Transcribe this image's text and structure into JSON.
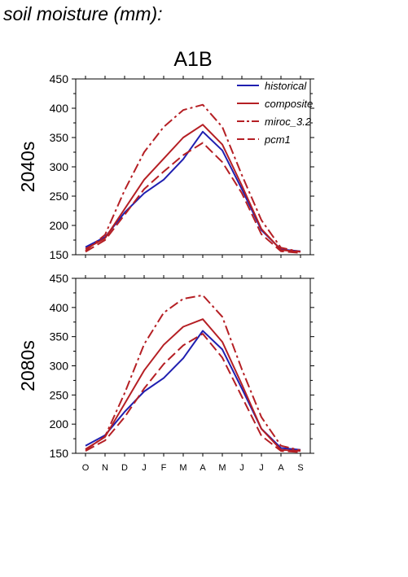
{
  "title": "soil moisture (mm):",
  "scenario": "A1B",
  "colors": {
    "historical": "#1f1fb0",
    "model": "#b51f24",
    "axis": "#000000"
  },
  "legend": [
    {
      "name": "historical",
      "color": "#1f1fb0",
      "dash": "solid"
    },
    {
      "name": "composite",
      "color": "#b51f24",
      "dash": "solid"
    },
    {
      "name": "miroc_3.2",
      "color": "#b51f24",
      "dash": "dashdot"
    },
    {
      "name": "pcm1",
      "color": "#b51f24",
      "dash": "dashed"
    }
  ],
  "chart_data": [
    {
      "type": "line",
      "ylabel": "2040s",
      "ylim": [
        150,
        450
      ],
      "yticks": [
        150,
        200,
        250,
        300,
        350,
        400,
        450
      ],
      "categories": [
        "O",
        "N",
        "D",
        "J",
        "F",
        "M",
        "A",
        "M",
        "J",
        "J",
        "A",
        "S"
      ],
      "series": [
        {
          "name": "historical",
          "values": [
            163,
            180,
            222,
            255,
            278,
            313,
            360,
            328,
            262,
            192,
            159,
            156
          ]
        },
        {
          "name": "composite",
          "values": [
            160,
            178,
            228,
            278,
            314,
            350,
            372,
            338,
            268,
            194,
            158,
            155
          ]
        },
        {
          "name": "miroc_3.2",
          "values": [
            157,
            184,
            260,
            325,
            368,
            397,
            406,
            368,
            286,
            209,
            162,
            155
          ]
        },
        {
          "name": "pcm1",
          "values": [
            155,
            175,
            218,
            262,
            292,
            320,
            341,
            308,
            255,
            185,
            156,
            153
          ]
        }
      ]
    },
    {
      "type": "line",
      "ylabel": "2080s",
      "ylim": [
        150,
        450
      ],
      "yticks": [
        150,
        200,
        250,
        300,
        350,
        400,
        450
      ],
      "categories": [
        "O",
        "N",
        "D",
        "J",
        "F",
        "M",
        "A",
        "M",
        "J",
        "J",
        "A",
        "S"
      ],
      "series": [
        {
          "name": "historical",
          "values": [
            163,
            181,
            221,
            256,
            279,
            313,
            360,
            328,
            261,
            192,
            159,
            156
          ]
        },
        {
          "name": "composite",
          "values": [
            157,
            178,
            235,
            292,
            336,
            367,
            380,
            341,
            268,
            192,
            156,
            154
          ]
        },
        {
          "name": "miroc_3.2",
          "values": [
            156,
            179,
            253,
            337,
            391,
            415,
            421,
            384,
            294,
            212,
            163,
            155
          ]
        },
        {
          "name": "pcm1",
          "values": [
            154,
            172,
            212,
            261,
            303,
            335,
            355,
            314,
            247,
            180,
            154,
            152
          ]
        }
      ]
    }
  ]
}
